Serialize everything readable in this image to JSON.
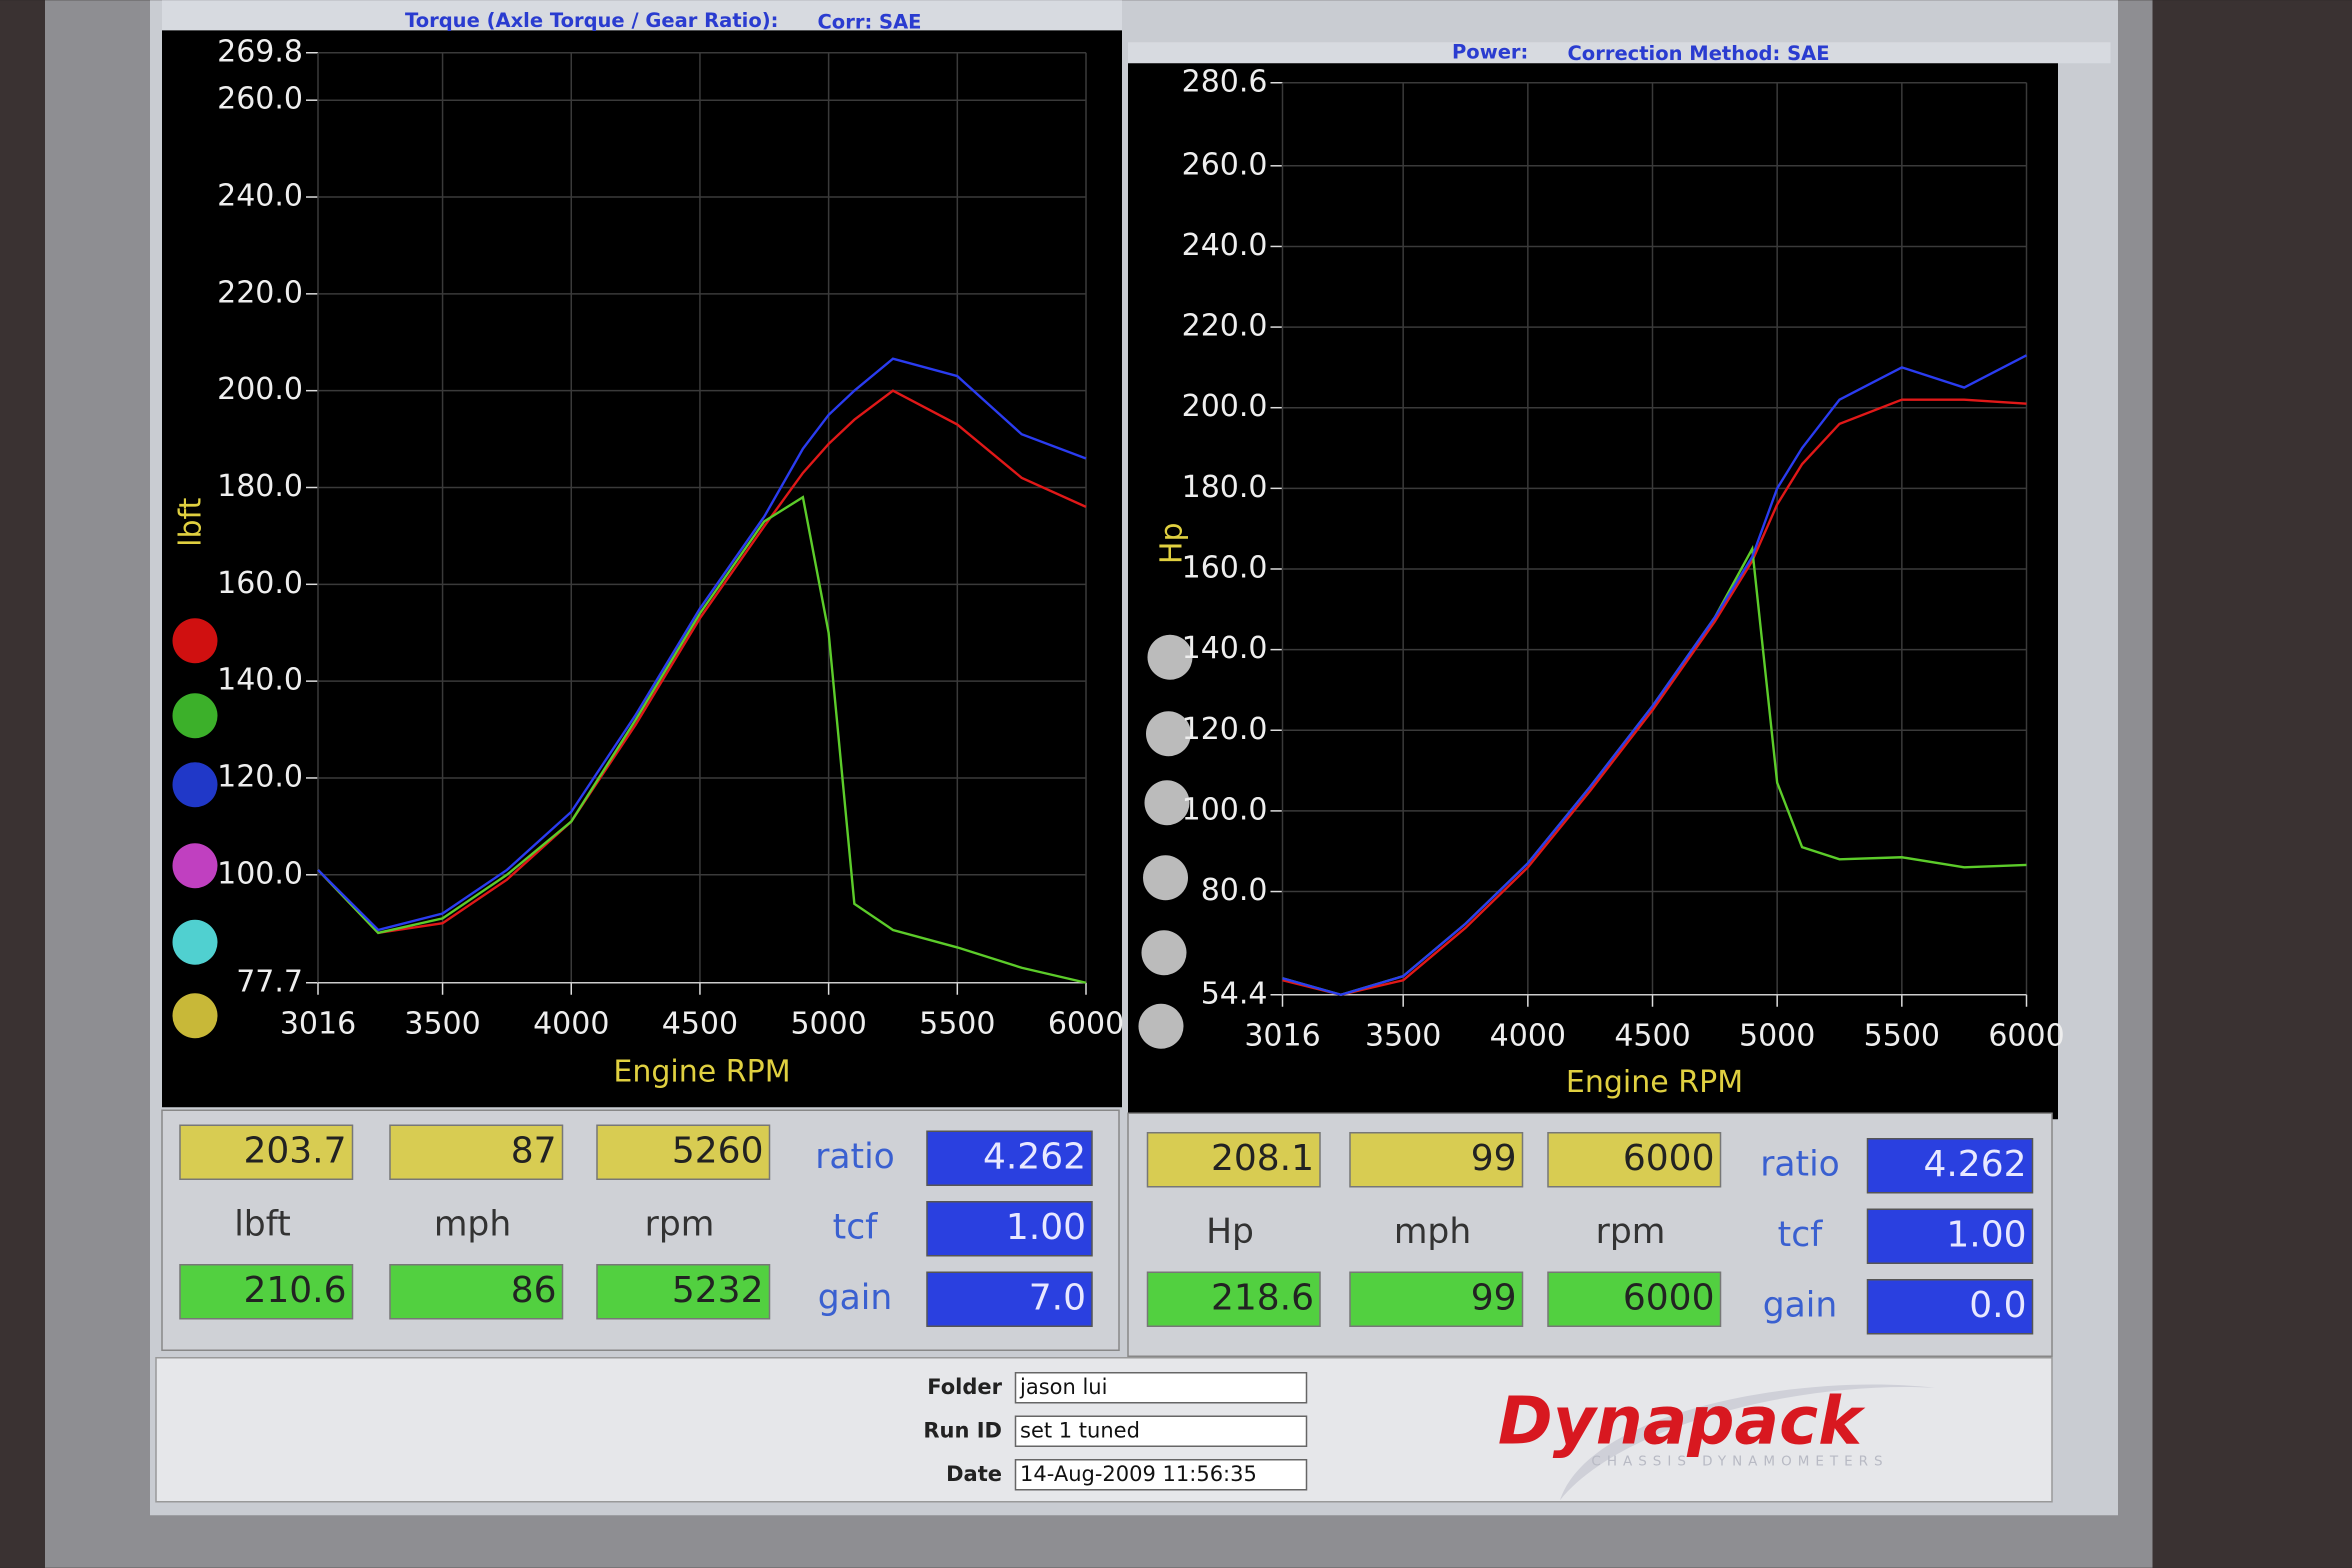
{
  "chart_data": [
    {
      "type": "line",
      "title": "Torque (Axle Torque / Gear Ratio):",
      "subtitle": "Corr: SAE",
      "x_label": "Engine RPM",
      "y_label": "lbft",
      "x": [
        3016,
        3250,
        3500,
        3750,
        4000,
        4250,
        4500,
        4750,
        4900,
        5000,
        5100,
        5250,
        5500,
        5750,
        6000
      ],
      "xlim": [
        3016,
        6000
      ],
      "xticks": [
        3016,
        3500,
        4000,
        4500,
        5000,
        5500,
        6000
      ],
      "ylim": [
        77.7,
        269.8
      ],
      "yticks": [
        77.7,
        {
          "value": 100,
          "label": "100.0"
        },
        {
          "value": 120,
          "label": "120.0"
        },
        {
          "value": 140,
          "label": "140.0"
        },
        {
          "value": 160,
          "label": "160.0"
        },
        {
          "value": 180,
          "label": "180.0"
        },
        {
          "value": 200,
          "label": "200.0"
        },
        {
          "value": 220,
          "label": "220.0"
        },
        {
          "value": 240,
          "label": "240.0"
        },
        {
          "value": 260,
          "label": "260.0"
        },
        269.8
      ],
      "grid": true,
      "series": [
        {
          "color": "#e01818",
          "values": [
            101,
            88,
            90,
            99,
            111,
            131,
            153,
            172,
            183,
            189,
            194,
            200,
            193,
            182,
            176
          ]
        },
        {
          "color": "#5ccc2a",
          "values": [
            101,
            88,
            91,
            100,
            111,
            132,
            154,
            173,
            178,
            150,
            94,
            88.6,
            85,
            80.8,
            77.7
          ]
        },
        {
          "color": "#2a3cf0",
          "values": [
            101,
            88.6,
            92,
            101,
            113,
            133,
            155,
            174,
            188,
            195,
            200,
            206.6,
            203,
            191,
            186
          ]
        }
      ]
    },
    {
      "type": "line",
      "title": "Power:",
      "subtitle": "Correction Method: SAE",
      "x_label": "Engine RPM",
      "y_label": "Hp",
      "x": [
        3016,
        3250,
        3500,
        3750,
        4000,
        4250,
        4500,
        4750,
        4900,
        5000,
        5100,
        5250,
        5500,
        5750,
        6000
      ],
      "xlim": [
        3016,
        6000
      ],
      "xticks": [
        3016,
        3500,
        4000,
        4500,
        5000,
        5500,
        6000
      ],
      "ylim": [
        54.4,
        280.6
      ],
      "yticks": [
        54.4,
        {
          "value": 80,
          "label": "80.0"
        },
        {
          "value": 100,
          "label": "100.0"
        },
        {
          "value": 120,
          "label": "120.0"
        },
        {
          "value": 140,
          "label": "140.0"
        },
        {
          "value": 160,
          "label": "160.0"
        },
        {
          "value": 180,
          "label": "180.0"
        },
        {
          "value": 200,
          "label": "200.0"
        },
        {
          "value": 220,
          "label": "220.0"
        },
        {
          "value": 240,
          "label": "240.0"
        },
        {
          "value": 260,
          "label": "260.0"
        },
        280.6
      ],
      "grid": true,
      "series": [
        {
          "color": "#e01818",
          "values": [
            58,
            54.4,
            58,
            71,
            86,
            105,
            125,
            147,
            162,
            176,
            186,
            196,
            202,
            202,
            201
          ]
        },
        {
          "color": "#5ccc2a",
          "values": [
            58.5,
            54.4,
            59,
            72,
            87,
            106,
            126,
            148,
            165,
            107,
            91,
            88,
            88.5,
            86,
            86.6
          ]
        },
        {
          "color": "#2a3cf0",
          "values": [
            58.5,
            54.4,
            59,
            72,
            87,
            106,
            126,
            148,
            163,
            180,
            190,
            202,
            210,
            205,
            213
          ]
        }
      ]
    }
  ],
  "readouts": [
    {
      "yellow": [
        "203.7",
        "87",
        "5260"
      ],
      "units": [
        "lbft",
        "mph",
        "rpm"
      ],
      "green": [
        "210.6",
        "86",
        "5232"
      ],
      "param_labels": [
        "ratio",
        "tcf",
        "gain"
      ],
      "param_values": [
        "4.262",
        "1.00",
        "7.0"
      ]
    },
    {
      "yellow": [
        "208.1",
        "99",
        "6000"
      ],
      "units": [
        "Hp",
        "mph",
        "rpm"
      ],
      "green": [
        "218.6",
        "99",
        "6000"
      ],
      "param_labels": [
        "ratio",
        "tcf",
        "gain"
      ],
      "param_values": [
        "4.262",
        "1.00",
        "0.0"
      ]
    }
  ],
  "footer": {
    "fields": [
      {
        "label": "Folder",
        "value": "jason lui"
      },
      {
        "label": "Run ID",
        "value": "set 1 tuned"
      },
      {
        "label": "Date",
        "value": "14-Aug-2009  11:56:35"
      }
    ],
    "logo": "Dynapack",
    "logo_sub": "CHASSIS DYNAMOMETERS"
  }
}
